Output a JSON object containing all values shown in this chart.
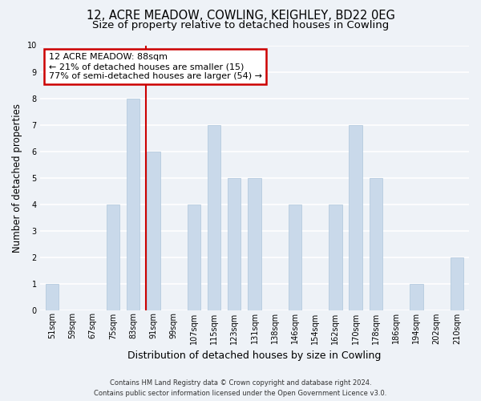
{
  "title": "12, ACRE MEADOW, COWLING, KEIGHLEY, BD22 0EG",
  "subtitle": "Size of property relative to detached houses in Cowling",
  "xlabel": "Distribution of detached houses by size in Cowling",
  "ylabel": "Number of detached properties",
  "bin_labels": [
    "51sqm",
    "59sqm",
    "67sqm",
    "75sqm",
    "83sqm",
    "91sqm",
    "99sqm",
    "107sqm",
    "115sqm",
    "123sqm",
    "131sqm",
    "138sqm",
    "146sqm",
    "154sqm",
    "162sqm",
    "170sqm",
    "178sqm",
    "186sqm",
    "194sqm",
    "202sqm",
    "210sqm"
  ],
  "bar_values": [
    1,
    0,
    0,
    4,
    8,
    6,
    0,
    4,
    7,
    5,
    5,
    0,
    4,
    0,
    4,
    7,
    5,
    0,
    1,
    0,
    2
  ],
  "bar_color": "#c9d9ea",
  "bar_edge_color": "#aec6db",
  "reference_line_color": "#cc0000",
  "annotation_box_edge_color": "#cc0000",
  "ylim": [
    0,
    10
  ],
  "yticks": [
    0,
    1,
    2,
    3,
    4,
    5,
    6,
    7,
    8,
    9,
    10
  ],
  "background_color": "#eef2f7",
  "plot_bg_color": "#eef2f7",
  "grid_color": "#ffffff",
  "footer_line1": "Contains HM Land Registry data © Crown copyright and database right 2024.",
  "footer_line2": "Contains public sector information licensed under the Open Government Licence v3.0.",
  "title_fontsize": 10.5,
  "subtitle_fontsize": 9.5,
  "xlabel_fontsize": 9,
  "ylabel_fontsize": 8.5,
  "tick_fontsize": 7,
  "footer_fontsize": 6,
  "annotation_fontsize": 8,
  "annotation_title": "12 ACRE MEADOW: 88sqm",
  "annotation_line1": "← 21% of detached houses are smaller (15)",
  "annotation_line2": "77% of semi-detached houses are larger (54) →"
}
